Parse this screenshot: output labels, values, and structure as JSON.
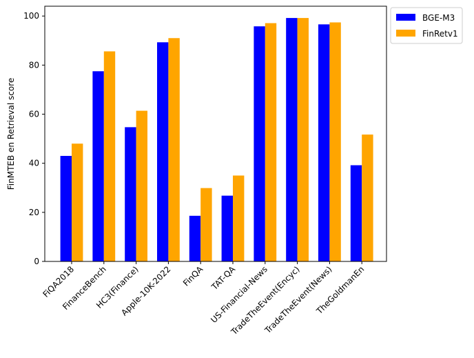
{
  "chart_data": {
    "type": "bar",
    "categories": [
      "FiQA2018",
      "FinanceBench",
      "HC3(Finance)",
      "Apple-10K-2022",
      "FinQA",
      "TAT-QA",
      "US-Financial-News",
      "TradeTheEvent(Encyc)",
      "TradeTheEvent(News)",
      "TheGoldmanEn"
    ],
    "series": [
      {
        "name": "BGE-M3",
        "color": "#0000ff",
        "values": [
          43.0,
          77.5,
          54.7,
          89.3,
          18.6,
          26.8,
          95.8,
          99.2,
          96.6,
          39.2
        ]
      },
      {
        "name": "FinRetv1",
        "color": "#ffa500",
        "values": [
          48.0,
          85.6,
          61.4,
          91.0,
          29.9,
          35.0,
          97.1,
          99.2,
          97.4,
          51.7
        ]
      }
    ],
    "xlabel": "",
    "ylabel": "FinMTEB en Retrieval score",
    "ylim": [
      0,
      104
    ],
    "yticks": [
      "0",
      "20",
      "40",
      "60",
      "80",
      "100"
    ],
    "grid": false,
    "legend_position": "outside-top-right"
  }
}
